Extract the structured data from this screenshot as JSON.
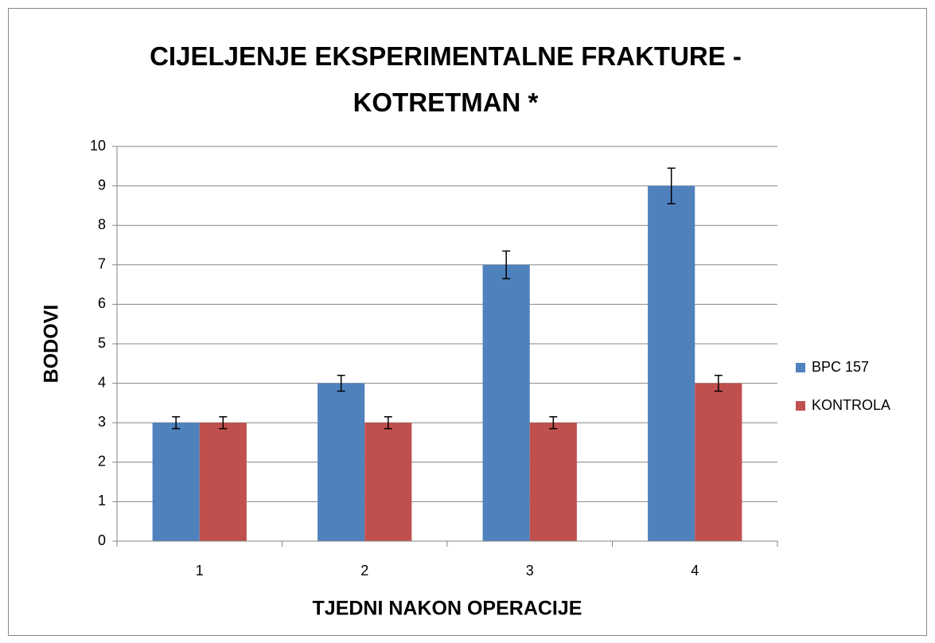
{
  "chart_data": {
    "type": "bar",
    "title": "CIJELJENJE EKSPERIMENTALNE FRAKTURE - KOTRETMAN *",
    "x_label": "TJEDNI NAKON OPERACIJE",
    "y_label": "BODOVI",
    "categories": [
      "1",
      "2",
      "3",
      "4"
    ],
    "series": [
      {
        "name": "BPC 157",
        "color": "#4f81bd",
        "values": [
          3,
          4,
          7,
          9
        ],
        "errors": [
          0.15,
          0.2,
          0.35,
          0.45
        ]
      },
      {
        "name": "KONTROLA",
        "color": "#c0504d",
        "values": [
          3,
          3,
          3,
          4
        ],
        "errors": [
          0.15,
          0.15,
          0.15,
          0.2
        ]
      }
    ],
    "ylim": [
      0,
      10
    ],
    "yticks": [
      0,
      1,
      2,
      3,
      4,
      5,
      6,
      7,
      8,
      9,
      10
    ],
    "grid": true,
    "legend": "right"
  }
}
